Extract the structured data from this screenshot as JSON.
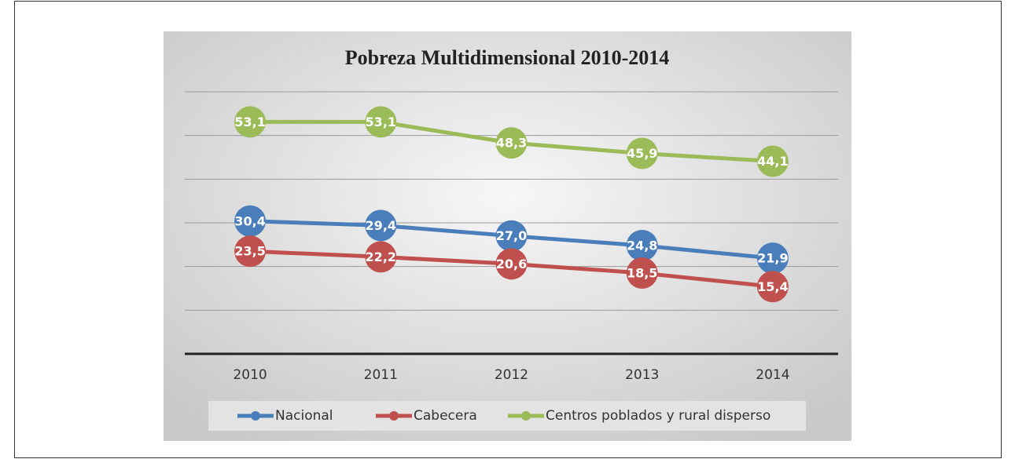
{
  "chart_data": {
    "type": "line",
    "title": "Pobreza Multidimensional 2010-2014",
    "categories": [
      "2010",
      "2011",
      "2012",
      "2013",
      "2014"
    ],
    "series": [
      {
        "name": "Nacional",
        "color": "#4a7ebb",
        "values": [
          30.4,
          29.4,
          27.0,
          24.8,
          21.9
        ],
        "value_labels": [
          "30,4",
          "29,4",
          "27,0",
          "24,8",
          "21,9"
        ]
      },
      {
        "name": "Cabecera",
        "color": "#c0504d",
        "values": [
          23.5,
          22.2,
          20.6,
          18.5,
          15.4
        ],
        "value_labels": [
          "23,5",
          "22,2",
          "20,6",
          "18,5",
          "15,4"
        ]
      },
      {
        "name": "Centros poblados y rural disperso",
        "color": "#9bbb59",
        "values": [
          53.1,
          53.1,
          48.3,
          45.9,
          44.1
        ],
        "value_labels": [
          "53,1",
          "53,1",
          "48,3",
          "45,9",
          "44,1"
        ]
      }
    ],
    "ylim": [
      0,
      60
    ],
    "yticks": [
      0,
      10,
      20,
      30,
      40,
      50,
      60
    ],
    "grid": true,
    "legend": "bottom"
  }
}
